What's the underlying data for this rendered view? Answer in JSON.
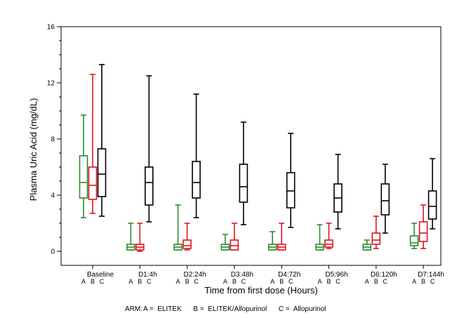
{
  "chart_data": {
    "type": "boxplot",
    "ylabel": "Plasma Uric Acid (mg/dL)",
    "xlabel": "Time from first dose (Hours)",
    "ylim": [
      -1,
      16
    ],
    "yticks": [
      0,
      4,
      8,
      12,
      16
    ],
    "categories": [
      "Baseline",
      "D1:4h",
      "D2:24h",
      "D3:48h",
      "D4:72h",
      "D5:96h",
      "D6:120h",
      "D7:144h"
    ],
    "arm_letters": [
      "A",
      "B",
      "C"
    ],
    "legend": {
      "arm_label": "ARM:",
      "text": "A =  ELITEK      B =  ELITEK/Allopurinol      C =  Allopurinol"
    },
    "colors": {
      "A": "#2e8b2e",
      "B": "#e0141e",
      "C": "#000000",
      "frame": "#000000"
    },
    "series": [
      {
        "arm": "A",
        "boxes": [
          {
            "min": 2.4,
            "q1": 3.8,
            "median": 4.9,
            "q3": 6.8,
            "max": 9.7
          },
          {
            "min": 0.1,
            "q1": 0.1,
            "median": 0.3,
            "q3": 0.5,
            "max": 2.0
          },
          {
            "min": 0.1,
            "q1": 0.1,
            "median": 0.3,
            "q3": 0.5,
            "max": 3.3
          },
          {
            "min": 0.1,
            "q1": 0.1,
            "median": 0.3,
            "q3": 0.5,
            "max": 1.2
          },
          {
            "min": 0.1,
            "q1": 0.1,
            "median": 0.3,
            "q3": 0.5,
            "max": 1.4
          },
          {
            "min": 0.1,
            "q1": 0.1,
            "median": 0.3,
            "q3": 0.5,
            "max": 1.9
          },
          {
            "min": 0.1,
            "q1": 0.1,
            "median": 0.3,
            "q3": 0.5,
            "max": 0.8
          },
          {
            "min": 0.2,
            "q1": 0.4,
            "median": 0.6,
            "q3": 1.1,
            "max": 2.0
          }
        ]
      },
      {
        "arm": "B",
        "boxes": [
          {
            "min": 2.7,
            "q1": 3.7,
            "median": 4.7,
            "q3": 6.0,
            "max": 12.6
          },
          {
            "min": 0.0,
            "q1": 0.1,
            "median": 0.3,
            "q3": 0.5,
            "max": 2.0
          },
          {
            "min": 0.1,
            "q1": 0.2,
            "median": 0.4,
            "q3": 0.8,
            "max": 2.0
          },
          {
            "min": 0.1,
            "q1": 0.1,
            "median": 0.4,
            "q3": 0.8,
            "max": 2.0
          },
          {
            "min": 0.1,
            "q1": 0.1,
            "median": 0.3,
            "q3": 0.5,
            "max": 2.0
          },
          {
            "min": 0.2,
            "q1": 0.3,
            "median": 0.5,
            "q3": 0.8,
            "max": 2.0
          },
          {
            "min": 0.2,
            "q1": 0.5,
            "median": 0.8,
            "q3": 1.3,
            "max": 2.5
          },
          {
            "min": 0.2,
            "q1": 0.7,
            "median": 1.3,
            "q3": 2.1,
            "max": 3.3
          }
        ]
      },
      {
        "arm": "C",
        "boxes": [
          {
            "min": 2.5,
            "q1": 3.9,
            "median": 5.5,
            "q3": 7.3,
            "max": 13.3
          },
          {
            "min": 2.1,
            "q1": 3.3,
            "median": 4.9,
            "q3": 6.0,
            "max": 12.5
          },
          {
            "min": 2.4,
            "q1": 3.8,
            "median": 4.9,
            "q3": 6.4,
            "max": 11.2
          },
          {
            "min": 1.9,
            "q1": 3.5,
            "median": 4.6,
            "q3": 6.2,
            "max": 9.2
          },
          {
            "min": 1.7,
            "q1": 3.1,
            "median": 4.3,
            "q3": 5.6,
            "max": 8.4
          },
          {
            "min": 1.6,
            "q1": 2.8,
            "median": 3.8,
            "q3": 4.8,
            "max": 6.9
          },
          {
            "min": 1.3,
            "q1": 2.6,
            "median": 3.6,
            "q3": 4.8,
            "max": 6.2
          },
          {
            "min": 1.6,
            "q1": 2.3,
            "median": 3.2,
            "q3": 4.3,
            "max": 6.6
          }
        ]
      }
    ]
  }
}
